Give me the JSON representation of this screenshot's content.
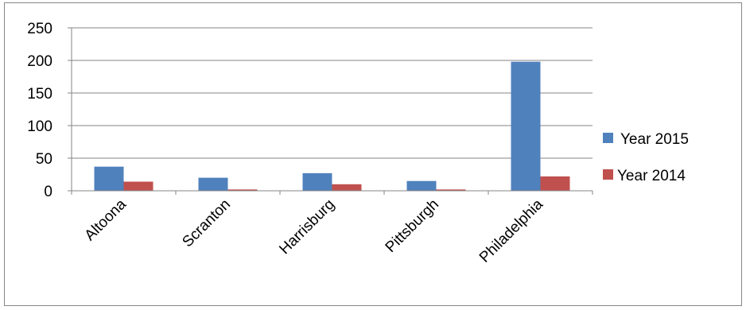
{
  "chart_data": {
    "type": "bar",
    "title": "",
    "xlabel": "",
    "ylabel": "",
    "categories": [
      "Altoona",
      "Scranton",
      "Harrisburg",
      "Pittsburgh",
      "Philadelphia"
    ],
    "series": [
      {
        "name": "Year 2015",
        "values": [
          37,
          20,
          27,
          15,
          198
        ],
        "color": "#4F81BD"
      },
      {
        "name": "Year 2014",
        "values": [
          14,
          2,
          10,
          2,
          22
        ],
        "color": "#C0504D"
      }
    ],
    "ylim": [
      0,
      250
    ],
    "yticks": [
      0,
      50,
      100,
      150,
      200,
      250
    ],
    "grid": true,
    "legend_position": "right"
  }
}
